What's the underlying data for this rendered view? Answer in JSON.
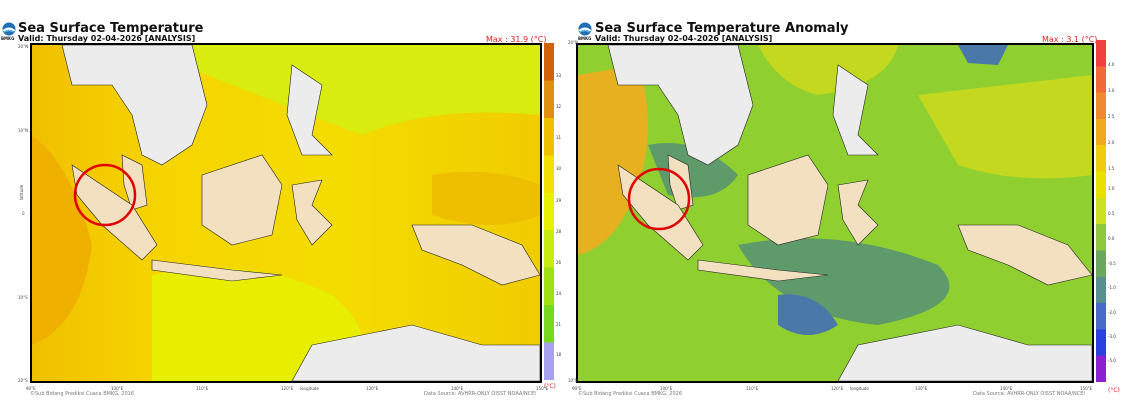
{
  "panels": [
    {
      "title": "Sea Surface Temperature",
      "valid": "Valid: Thursday 02-04-2026 [ANALYSIS]",
      "max": "Max : 31.9 (°C)",
      "cbar_ticks": [
        "33",
        "32",
        "31",
        "30",
        "29",
        "28",
        "26",
        "24",
        "21",
        "18"
      ],
      "cbar_unit": "(°C)",
      "footer_left": "©Sub Bidang Prediksi Cuaca BMKG, 2016",
      "footer_right": "Data Source: AVHRR-ONLY OISST NOAA/NCEI",
      "colors": [
        "#d0620a",
        "#e09010",
        "#f0c000",
        "#f2e000",
        "#e8f000",
        "#c8ec10",
        "#9ee014",
        "#78d820",
        "#a9a0f0"
      ]
    },
    {
      "title": "Sea Surface Temperature Anomaly",
      "valid": "Valid: Thursday 02-04-2026 [ANALYSIS]",
      "max": "Max : 3.1 (°C)",
      "cbar_ticks": [
        "4.0",
        "3.0",
        "2.5",
        "2.0",
        "1.5",
        "1.0",
        "0.5",
        "0.0",
        "-0.5",
        "-1.0",
        "-2.0",
        "-3.0",
        "-5.0"
      ],
      "cbar_unit": "(°C)",
      "footer_left": "©Sub Bidang Prediksi Cuaca BMKG, 2026",
      "footer_right": "Data Source: AVHRR-ONLY OISST NOAA/NCEI",
      "colors": [
        "#f04040",
        "#f06a3a",
        "#f08a30",
        "#f0aa20",
        "#f0cc10",
        "#e8e000",
        "#cce024",
        "#90c83c",
        "#6aa860",
        "#5a8f90",
        "#4a6ac8",
        "#2a40e0",
        "#8a20d0"
      ]
    }
  ],
  "axes": {
    "lat_labels": [
      "20°N",
      "10°N",
      "0",
      "10°S",
      "20°S"
    ],
    "lon_labels": [
      "90°E",
      "100°E",
      "110°E",
      "120°E",
      "130°E",
      "140°E",
      "150°E"
    ],
    "xlabel": "longitude",
    "ylabel": "latitude"
  },
  "bmkg": "BMKG"
}
